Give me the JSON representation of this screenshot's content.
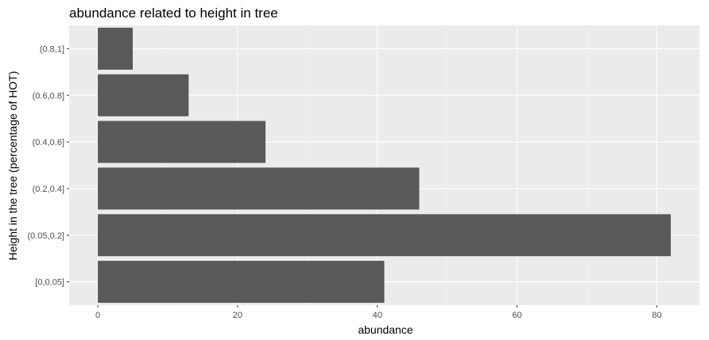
{
  "chart_data": {
    "type": "bar",
    "orientation": "horizontal",
    "title": "abundance related to height in tree",
    "xlabel": "abundance",
    "ylabel": "Height in the tree (percentage of HOT)",
    "categories": [
      "[0,0.05]",
      "(0.05,0.2]",
      "(0.2,0.4]",
      "(0.4,0.6]",
      "(0.6,0.8]",
      "(0.8,1]"
    ],
    "values": [
      41,
      82,
      46,
      24,
      13,
      5
    ],
    "xlim": [
      -4.1,
      86.1
    ],
    "xticks": [
      0,
      20,
      40,
      60,
      80
    ],
    "xtick_labels": [
      "0",
      "20",
      "40",
      "60",
      "80"
    ],
    "grid": true,
    "colors": {
      "bar": "#595959",
      "panel": "#ebebeb",
      "grid_major": "#ffffff",
      "grid_minor": "#f4f4f4",
      "tick_text": "#4d4d4d",
      "tick_mark": "#333333"
    }
  }
}
